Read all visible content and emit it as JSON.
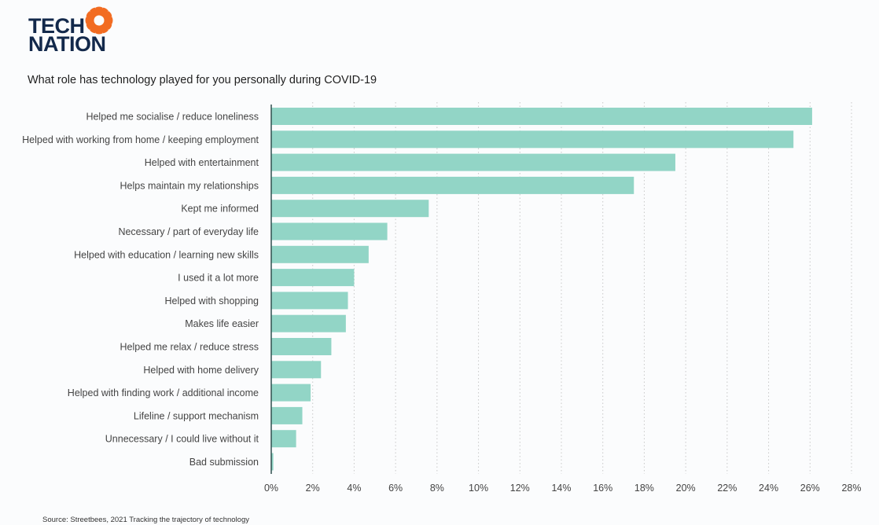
{
  "brand": {
    "line1": "TECH",
    "line2": "NATION",
    "accent": "#f26c22",
    "navy": "#13294b"
  },
  "title": "What role has technology played for you personally during COVID-19",
  "source": "Source: Streetbees, 2021 Tracking the trajectory of technology",
  "colors": {
    "bar": "#92d5c6",
    "axis": "#2f4f4f",
    "grid": "#c8c8c8"
  },
  "chart_data": {
    "type": "bar",
    "orientation": "horizontal",
    "title": "What role has technology played for you personally during COVID-19",
    "categories": [
      "Helped me socialise / reduce loneliness",
      "Helped with working from home / keeping employment",
      "Helped with entertainment",
      "Helps maintain my relationships",
      "Kept me informed",
      "Necessary / part of everyday life",
      "Helped with education / learning new skills",
      "I used it a lot more",
      "Helped with shopping",
      "Makes life easier",
      "Helped me relax / reduce stress",
      "Helped with home delivery",
      "Helped with finding work / additional income",
      "Lifeline / support mechanism",
      "Unnecessary / I could live without it",
      "Bad submission"
    ],
    "values": [
      26.1,
      25.2,
      19.5,
      17.5,
      7.6,
      5.6,
      4.7,
      4.0,
      3.7,
      3.6,
      2.9,
      2.4,
      1.9,
      1.5,
      1.2,
      0.1
    ],
    "xlim": [
      0,
      28
    ],
    "ticks": [
      "0%",
      "2%",
      "4%",
      "6%",
      "8%",
      "10%",
      "12%",
      "14%",
      "16%",
      "18%",
      "20%",
      "22%",
      "24%",
      "26%",
      "28%"
    ],
    "grid": "vertical dotted"
  }
}
